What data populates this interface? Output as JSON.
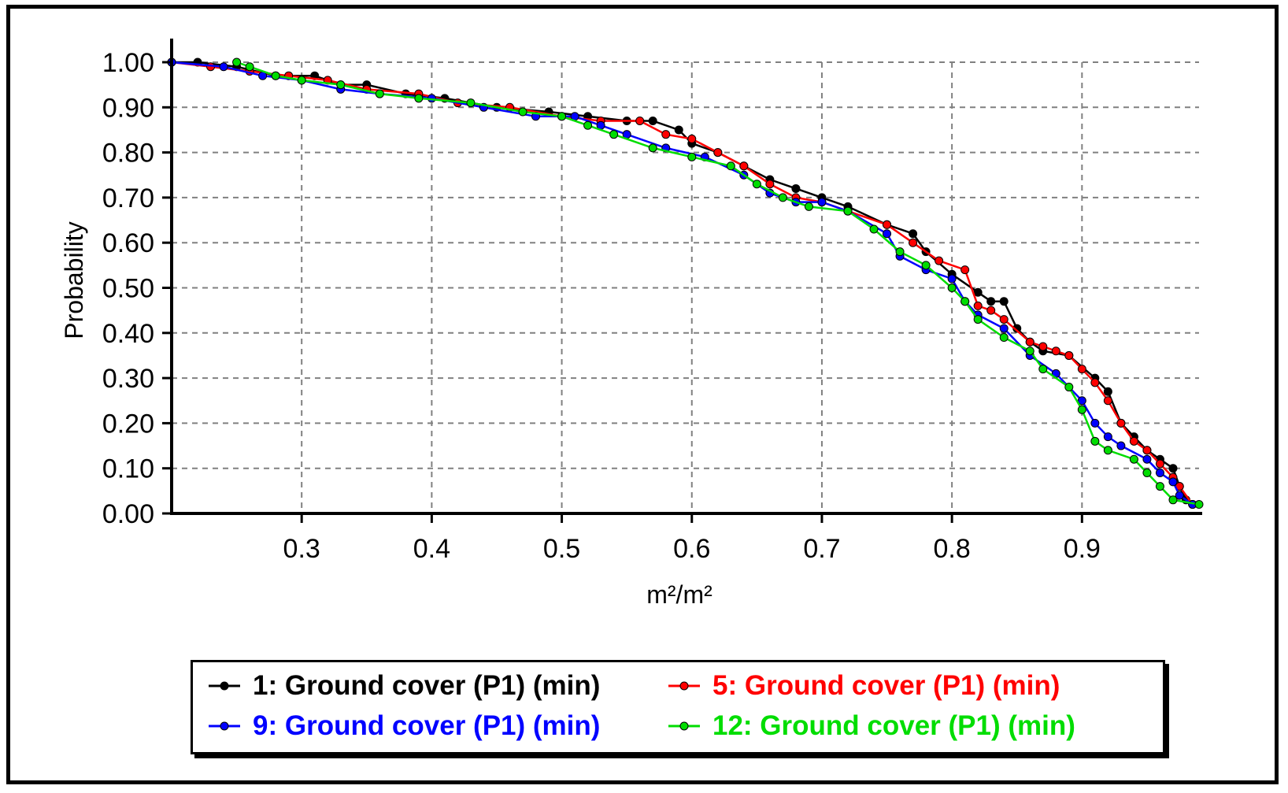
{
  "chart_data": {
    "type": "line",
    "title": "",
    "xlabel": "m²/m²",
    "ylabel": "Probability",
    "xlim": [
      0.2,
      0.99
    ],
    "ylim": [
      0,
      1.0
    ],
    "x_ticks": [
      "0.3",
      "0.4",
      "0.5",
      "0.6",
      "0.7",
      "0.8",
      "0.9"
    ],
    "x_tick_values": [
      0.3,
      0.4,
      0.5,
      0.6,
      0.7,
      0.8,
      0.9
    ],
    "y_ticks": [
      "0.00",
      "0.10",
      "0.20",
      "0.30",
      "0.40",
      "0.50",
      "0.60",
      "0.70",
      "0.80",
      "0.90",
      "1.00"
    ],
    "y_tick_values": [
      0,
      0.1,
      0.2,
      0.3,
      0.4,
      0.5,
      0.6,
      0.7,
      0.8,
      0.9,
      1.0
    ],
    "grid": true,
    "legend_position": "bottom",
    "series": [
      {
        "name": "1: Ground cover (P1) (min)",
        "color": "#000000",
        "points": [
          [
            0.2,
            1.0
          ],
          [
            0.22,
            1.0
          ],
          [
            0.25,
            0.99
          ],
          [
            0.28,
            0.97
          ],
          [
            0.31,
            0.97
          ],
          [
            0.33,
            0.95
          ],
          [
            0.35,
            0.95
          ],
          [
            0.38,
            0.93
          ],
          [
            0.41,
            0.92
          ],
          [
            0.45,
            0.9
          ],
          [
            0.49,
            0.89
          ],
          [
            0.52,
            0.88
          ],
          [
            0.55,
            0.87
          ],
          [
            0.57,
            0.87
          ],
          [
            0.59,
            0.85
          ],
          [
            0.6,
            0.82
          ],
          [
            0.62,
            0.8
          ],
          [
            0.64,
            0.77
          ],
          [
            0.66,
            0.74
          ],
          [
            0.68,
            0.72
          ],
          [
            0.7,
            0.7
          ],
          [
            0.72,
            0.68
          ],
          [
            0.75,
            0.64
          ],
          [
            0.77,
            0.62
          ],
          [
            0.78,
            0.58
          ],
          [
            0.8,
            0.53
          ],
          [
            0.82,
            0.49
          ],
          [
            0.83,
            0.47
          ],
          [
            0.84,
            0.47
          ],
          [
            0.85,
            0.41
          ],
          [
            0.86,
            0.38
          ],
          [
            0.87,
            0.36
          ],
          [
            0.89,
            0.35
          ],
          [
            0.91,
            0.3
          ],
          [
            0.92,
            0.27
          ],
          [
            0.93,
            0.2
          ],
          [
            0.94,
            0.17
          ],
          [
            0.95,
            0.14
          ],
          [
            0.96,
            0.12
          ],
          [
            0.97,
            0.1
          ],
          [
            0.975,
            0.06
          ],
          [
            0.98,
            0.03
          ],
          [
            0.985,
            0.02
          ]
        ]
      },
      {
        "name": "5: Ground cover (P1) (min)",
        "color": "#ff0000",
        "points": [
          [
            0.2,
            1.0
          ],
          [
            0.23,
            0.99
          ],
          [
            0.26,
            0.98
          ],
          [
            0.29,
            0.97
          ],
          [
            0.32,
            0.96
          ],
          [
            0.35,
            0.94
          ],
          [
            0.39,
            0.93
          ],
          [
            0.42,
            0.91
          ],
          [
            0.46,
            0.9
          ],
          [
            0.5,
            0.88
          ],
          [
            0.53,
            0.87
          ],
          [
            0.56,
            0.87
          ],
          [
            0.58,
            0.84
          ],
          [
            0.6,
            0.83
          ],
          [
            0.62,
            0.8
          ],
          [
            0.64,
            0.77
          ],
          [
            0.66,
            0.73
          ],
          [
            0.68,
            0.7
          ],
          [
            0.7,
            0.69
          ],
          [
            0.72,
            0.67
          ],
          [
            0.75,
            0.64
          ],
          [
            0.77,
            0.6
          ],
          [
            0.79,
            0.56
          ],
          [
            0.81,
            0.54
          ],
          [
            0.82,
            0.46
          ],
          [
            0.83,
            0.45
          ],
          [
            0.84,
            0.43
          ],
          [
            0.86,
            0.38
          ],
          [
            0.87,
            0.37
          ],
          [
            0.88,
            0.36
          ],
          [
            0.89,
            0.35
          ],
          [
            0.9,
            0.32
          ],
          [
            0.91,
            0.29
          ],
          [
            0.92,
            0.25
          ],
          [
            0.93,
            0.2
          ],
          [
            0.94,
            0.16
          ],
          [
            0.95,
            0.14
          ],
          [
            0.96,
            0.11
          ],
          [
            0.97,
            0.08
          ],
          [
            0.975,
            0.06
          ],
          [
            0.985,
            0.02
          ]
        ]
      },
      {
        "name": "9: Ground cover (P1) (min)",
        "color": "#0000ff",
        "points": [
          [
            0.2,
            1.0
          ],
          [
            0.24,
            0.99
          ],
          [
            0.27,
            0.97
          ],
          [
            0.3,
            0.96
          ],
          [
            0.33,
            0.94
          ],
          [
            0.36,
            0.93
          ],
          [
            0.4,
            0.92
          ],
          [
            0.44,
            0.9
          ],
          [
            0.48,
            0.88
          ],
          [
            0.51,
            0.88
          ],
          [
            0.53,
            0.86
          ],
          [
            0.55,
            0.84
          ],
          [
            0.58,
            0.81
          ],
          [
            0.61,
            0.79
          ],
          [
            0.64,
            0.75
          ],
          [
            0.66,
            0.71
          ],
          [
            0.68,
            0.69
          ],
          [
            0.7,
            0.69
          ],
          [
            0.72,
            0.67
          ],
          [
            0.75,
            0.62
          ],
          [
            0.76,
            0.57
          ],
          [
            0.78,
            0.54
          ],
          [
            0.8,
            0.52
          ],
          [
            0.81,
            0.47
          ],
          [
            0.82,
            0.44
          ],
          [
            0.84,
            0.41
          ],
          [
            0.86,
            0.35
          ],
          [
            0.88,
            0.31
          ],
          [
            0.9,
            0.25
          ],
          [
            0.91,
            0.2
          ],
          [
            0.92,
            0.17
          ],
          [
            0.93,
            0.15
          ],
          [
            0.95,
            0.12
          ],
          [
            0.96,
            0.09
          ],
          [
            0.97,
            0.07
          ],
          [
            0.975,
            0.04
          ],
          [
            0.985,
            0.02
          ]
        ]
      },
      {
        "name": "12: Ground cover (P1) (min)",
        "color": "#00dd00",
        "points": [
          [
            0.25,
            1.0
          ],
          [
            0.26,
            0.99
          ],
          [
            0.28,
            0.97
          ],
          [
            0.3,
            0.96
          ],
          [
            0.33,
            0.95
          ],
          [
            0.36,
            0.93
          ],
          [
            0.39,
            0.92
          ],
          [
            0.43,
            0.91
          ],
          [
            0.47,
            0.89
          ],
          [
            0.5,
            0.88
          ],
          [
            0.52,
            0.86
          ],
          [
            0.54,
            0.84
          ],
          [
            0.57,
            0.81
          ],
          [
            0.6,
            0.79
          ],
          [
            0.63,
            0.77
          ],
          [
            0.65,
            0.73
          ],
          [
            0.67,
            0.7
          ],
          [
            0.69,
            0.68
          ],
          [
            0.72,
            0.67
          ],
          [
            0.74,
            0.63
          ],
          [
            0.76,
            0.58
          ],
          [
            0.78,
            0.55
          ],
          [
            0.8,
            0.5
          ],
          [
            0.81,
            0.47
          ],
          [
            0.82,
            0.43
          ],
          [
            0.84,
            0.39
          ],
          [
            0.86,
            0.36
          ],
          [
            0.87,
            0.32
          ],
          [
            0.89,
            0.28
          ],
          [
            0.9,
            0.23
          ],
          [
            0.91,
            0.16
          ],
          [
            0.92,
            0.14
          ],
          [
            0.94,
            0.12
          ],
          [
            0.95,
            0.09
          ],
          [
            0.96,
            0.06
          ],
          [
            0.97,
            0.03
          ],
          [
            0.99,
            0.02
          ]
        ]
      }
    ]
  }
}
